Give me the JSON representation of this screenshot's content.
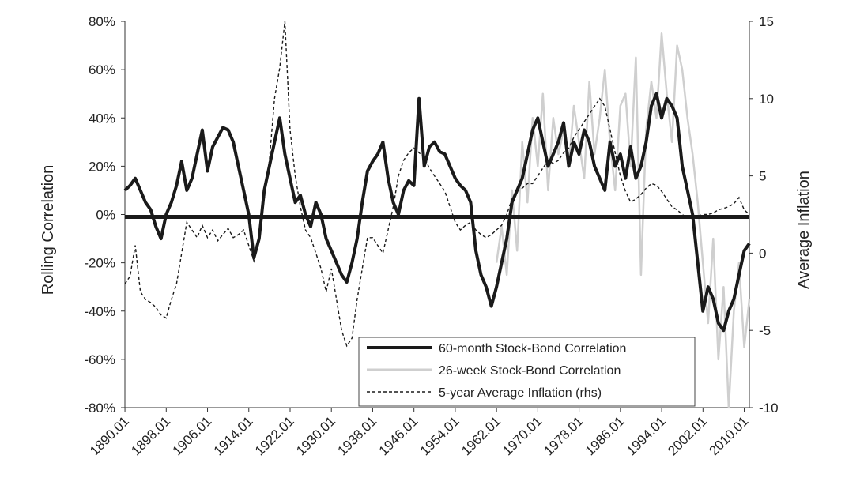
{
  "chart_data": {
    "type": "line",
    "title": "",
    "x_ticks": [
      "1890.01",
      "1898.01",
      "1906.01",
      "1914.01",
      "1922.01",
      "1930.01",
      "1938.01",
      "1946.01",
      "1954.01",
      "1962.01",
      "1970.01",
      "1978.01",
      "1986.01",
      "1994.01",
      "2002.01",
      "2010.01"
    ],
    "xlim": [
      1890,
      2011
    ],
    "y_left": {
      "label": "Rolling Correlation",
      "ticks": [
        "80%",
        "60%",
        "40%",
        "20%",
        "0%",
        "-20%",
        "-40%",
        "-60%",
        "-80%"
      ],
      "ylim": [
        -0.8,
        0.8
      ]
    },
    "y_right": {
      "label": "Average Inflation",
      "ticks": [
        "15",
        "10",
        "5",
        "0",
        "-5",
        "-10"
      ],
      "ylim": [
        -10,
        15
      ]
    },
    "legend": {
      "position": "bottom-center",
      "entries": [
        "60-month Stock-Bond Correlation",
        "26-week Stock-Bond Correlation",
        "5-year Average Inflation (rhs)"
      ]
    },
    "colors": {
      "corr60": "#1a1a1a",
      "corr26": "#cfcfcf",
      "inflation": "#1a1a1a",
      "zero_line": "#1a1a1a"
    },
    "series": [
      {
        "name": "60-month Stock-Bond Correlation",
        "axis": "left",
        "x": [
          1890,
          1891,
          1892,
          1893,
          1894,
          1895,
          1896,
          1897,
          1898,
          1899,
          1900,
          1901,
          1902,
          1903,
          1904,
          1905,
          1906,
          1907,
          1908,
          1909,
          1910,
          1911,
          1912,
          1913,
          1914,
          1915,
          1916,
          1917,
          1918,
          1919,
          1920,
          1921,
          1922,
          1923,
          1924,
          1925,
          1926,
          1927,
          1928,
          1929,
          1930,
          1931,
          1932,
          1933,
          1934,
          1935,
          1936,
          1937,
          1938,
          1939,
          1940,
          1941,
          1942,
          1943,
          1944,
          1945,
          1946,
          1947,
          1948,
          1949,
          1950,
          1951,
          1952,
          1953,
          1954,
          1955,
          1956,
          1957,
          1958,
          1959,
          1960,
          1961,
          1962,
          1963,
          1964,
          1965,
          1966,
          1967,
          1968,
          1969,
          1970,
          1971,
          1972,
          1973,
          1974,
          1975,
          1976,
          1977,
          1978,
          1979,
          1980,
          1981,
          1982,
          1983,
          1984,
          1985,
          1986,
          1987,
          1988,
          1989,
          1990,
          1991,
          1992,
          1993,
          1994,
          1995,
          1996,
          1997,
          1998,
          1999,
          2000,
          2001,
          2002,
          2003,
          2004,
          2005,
          2006,
          2007,
          2008,
          2009,
          2010,
          2011
        ],
        "y": [
          0.1,
          0.12,
          0.15,
          0.1,
          0.05,
          0.02,
          -0.05,
          -0.1,
          0.0,
          0.05,
          0.12,
          0.22,
          0.1,
          0.15,
          0.25,
          0.35,
          0.18,
          0.28,
          0.32,
          0.36,
          0.35,
          0.3,
          0.2,
          0.1,
          0.0,
          -0.18,
          -0.1,
          0.1,
          0.2,
          0.3,
          0.4,
          0.25,
          0.15,
          0.05,
          0.08,
          0.0,
          -0.05,
          0.05,
          0.0,
          -0.1,
          -0.15,
          -0.2,
          -0.25,
          -0.28,
          -0.2,
          -0.1,
          0.05,
          0.18,
          0.22,
          0.25,
          0.3,
          0.15,
          0.05,
          0.0,
          0.1,
          0.14,
          0.12,
          0.48,
          0.2,
          0.28,
          0.3,
          0.26,
          0.25,
          0.2,
          0.15,
          0.12,
          0.1,
          0.05,
          -0.15,
          -0.25,
          -0.3,
          -0.38,
          -0.3,
          -0.2,
          -0.1,
          0.05,
          0.1,
          0.15,
          0.25,
          0.35,
          0.4,
          0.3,
          0.2,
          0.25,
          0.3,
          0.38,
          0.2,
          0.3,
          0.25,
          0.35,
          0.3,
          0.2,
          0.15,
          0.1,
          0.3,
          0.2,
          0.25,
          0.15,
          0.28,
          0.15,
          0.2,
          0.3,
          0.45,
          0.5,
          0.4,
          0.48,
          0.45,
          0.4,
          0.2,
          0.1,
          0.0,
          -0.2,
          -0.4,
          -0.3,
          -0.35,
          -0.45,
          -0.48,
          -0.4,
          -0.35,
          -0.25,
          -0.15,
          -0.12
        ]
      },
      {
        "name": "26-week Stock-Bond Correlation",
        "axis": "left",
        "x": [
          1962,
          1963,
          1964,
          1965,
          1966,
          1967,
          1968,
          1969,
          1970,
          1971,
          1972,
          1973,
          1974,
          1975,
          1976,
          1977,
          1978,
          1979,
          1980,
          1981,
          1982,
          1983,
          1984,
          1985,
          1986,
          1987,
          1988,
          1989,
          1990,
          1991,
          1992,
          1993,
          1994,
          1995,
          1996,
          1997,
          1998,
          1999,
          2000,
          2001,
          2002,
          2003,
          2004,
          2005,
          2006,
          2007,
          2008,
          2009,
          2010,
          2011
        ],
        "y": [
          -0.2,
          -0.05,
          -0.25,
          0.1,
          -0.15,
          0.3,
          0.05,
          0.4,
          0.2,
          0.5,
          0.1,
          0.4,
          0.25,
          0.35,
          0.2,
          0.45,
          0.3,
          0.15,
          0.55,
          0.25,
          0.4,
          0.6,
          0.3,
          0.1,
          0.45,
          0.5,
          0.2,
          0.65,
          -0.25,
          0.35,
          0.55,
          0.4,
          0.75,
          0.5,
          0.3,
          0.7,
          0.6,
          0.4,
          0.25,
          0.05,
          -0.2,
          -0.45,
          -0.1,
          -0.6,
          -0.3,
          -0.8,
          -0.4,
          -0.2,
          -0.55,
          -0.35
        ]
      },
      {
        "name": "5-year Average Inflation (rhs)",
        "axis": "right",
        "x": [
          1890,
          1891,
          1892,
          1893,
          1894,
          1895,
          1896,
          1897,
          1898,
          1899,
          1900,
          1901,
          1902,
          1903,
          1904,
          1905,
          1906,
          1907,
          1908,
          1909,
          1910,
          1911,
          1912,
          1913,
          1914,
          1915,
          1916,
          1917,
          1918,
          1919,
          1920,
          1921,
          1922,
          1923,
          1924,
          1925,
          1926,
          1927,
          1928,
          1929,
          1930,
          1931,
          1932,
          1933,
          1934,
          1935,
          1936,
          1937,
          1938,
          1939,
          1940,
          1941,
          1942,
          1943,
          1944,
          1945,
          1946,
          1947,
          1948,
          1949,
          1950,
          1951,
          1952,
          1953,
          1954,
          1955,
          1956,
          1957,
          1958,
          1959,
          1960,
          1961,
          1962,
          1963,
          1964,
          1965,
          1966,
          1967,
          1968,
          1969,
          1970,
          1971,
          1972,
          1973,
          1974,
          1975,
          1976,
          1977,
          1978,
          1979,
          1980,
          1981,
          1982,
          1983,
          1984,
          1985,
          1986,
          1987,
          1988,
          1989,
          1990,
          1991,
          1992,
          1993,
          1994,
          1995,
          1996,
          1997,
          1998,
          1999,
          2000,
          2001,
          2002,
          2003,
          2004,
          2005,
          2006,
          2007,
          2008,
          2009,
          2010,
          2011
        ],
        "y": [
          -2.0,
          -1.5,
          0.5,
          -2.5,
          -3.0,
          -3.2,
          -3.5,
          -4.0,
          -4.2,
          -3.0,
          -2.0,
          0.0,
          2.0,
          1.5,
          1.0,
          1.8,
          1.0,
          1.5,
          0.8,
          1.2,
          1.6,
          1.0,
          1.2,
          1.5,
          0.5,
          -0.5,
          1.0,
          3.5,
          6.0,
          10.0,
          12.0,
          15.0,
          8.0,
          5.0,
          3.0,
          1.5,
          1.0,
          0.0,
          -1.0,
          -2.5,
          -1.0,
          -3.0,
          -5.0,
          -6.0,
          -5.5,
          -3.0,
          -1.0,
          1.0,
          1.0,
          0.5,
          0.0,
          1.5,
          3.0,
          5.0,
          6.0,
          6.5,
          6.8,
          6.5,
          6.2,
          5.5,
          5.0,
          4.5,
          4.0,
          3.0,
          2.0,
          1.5,
          1.8,
          2.0,
          1.5,
          1.2,
          1.0,
          1.2,
          1.5,
          1.8,
          2.5,
          3.5,
          4.0,
          4.2,
          4.5,
          4.5,
          5.0,
          5.5,
          6.0,
          5.8,
          6.0,
          6.5,
          6.8,
          7.5,
          8.0,
          8.5,
          9.0,
          9.5,
          10.0,
          9.5,
          8.0,
          6.5,
          5.0,
          4.0,
          3.3,
          3.5,
          3.8,
          4.2,
          4.5,
          4.4,
          4.0,
          3.5,
          3.0,
          2.8,
          2.5,
          2.3,
          2.3,
          2.4,
          2.5,
          2.5,
          2.6,
          2.8,
          2.9,
          3.0,
          3.2,
          3.6,
          2.8,
          2.5
        ]
      }
    ]
  }
}
